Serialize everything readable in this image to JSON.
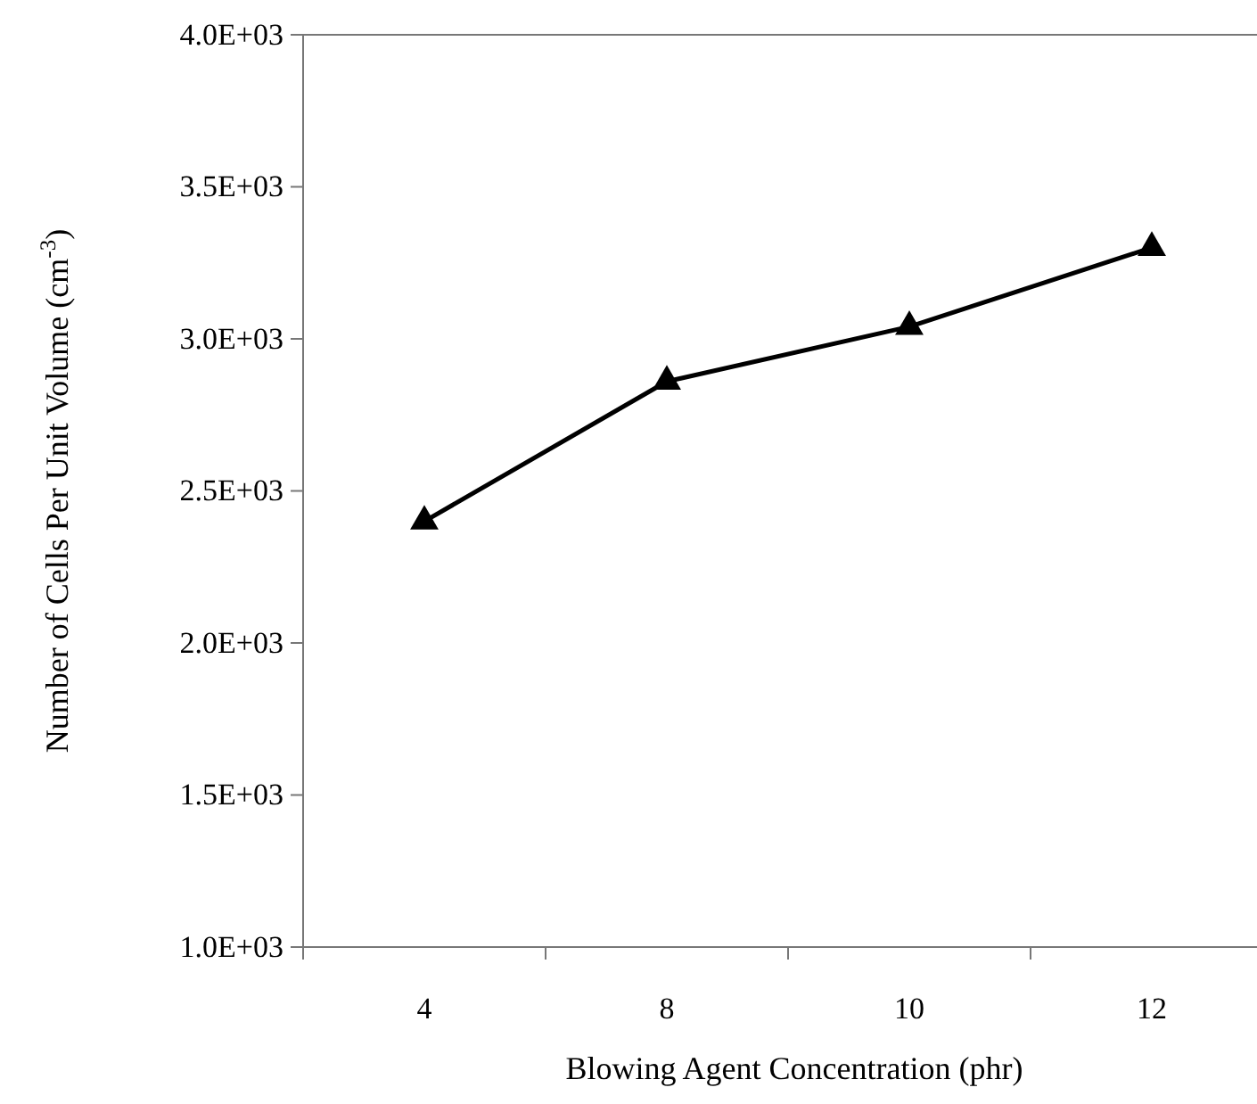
{
  "chart_data": {
    "type": "line",
    "xlabel": "Blowing Agent Concentration (phr)",
    "ylabel": "Number of Cells Per Unit Volume (cm$^{-3}$)",
    "categories": [
      "4",
      "8",
      "10",
      "12"
    ],
    "series": [
      {
        "color": "#000000",
        "values": [
          2400,
          2860,
          3040,
          3300
        ]
      }
    ],
    "ylim": [
      1000,
      4000
    ],
    "yticks": [
      {
        "value": 1000,
        "label": "1.0E+03"
      },
      {
        "value": 1500,
        "label": "1.5E+03"
      },
      {
        "value": 2000,
        "label": "2.0E+03"
      },
      {
        "value": 2500,
        "label": "2.5E+03"
      },
      {
        "value": 3000,
        "label": "3.0E+03"
      },
      {
        "value": 3500,
        "label": "3.5E+03"
      },
      {
        "value": 4000,
        "label": "4.0E+03"
      }
    ],
    "marker": "triangle",
    "line_style": "solid"
  }
}
